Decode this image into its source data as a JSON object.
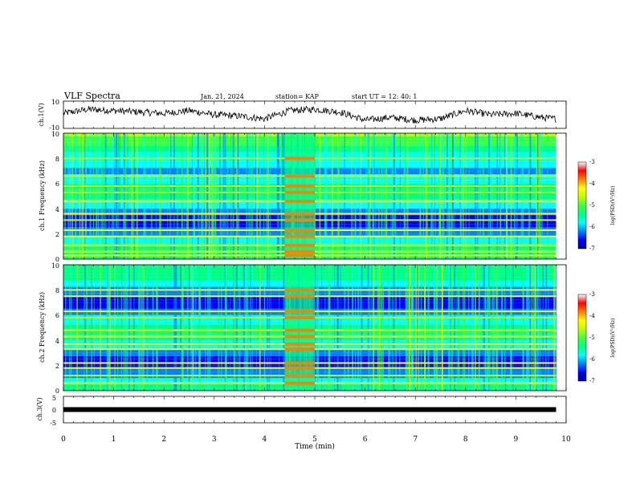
{
  "header": {
    "title": "VLF Spectra",
    "date": "Jan. 21, 2024",
    "station": "station= KAP",
    "start_time": "start UT =  12: 40: 1"
  },
  "colorbar": {
    "colors": [
      "#000080",
      "#0000ff",
      "#0080ff",
      "#00ffff",
      "#00ff80",
      "#40ff40",
      "#c0ff00",
      "#ffff00",
      "#ff8000",
      "#ff0000",
      "#ffffff"
    ],
    "ticks": [
      "-3",
      "-4",
      "-5",
      "-6",
      "-7"
    ],
    "label": "log(PSD)(V²/Hz)"
  },
  "chart_data": [
    {
      "type": "line",
      "title": "",
      "ylabel": "ch.1(V)",
      "ylim": [
        -10,
        10
      ],
      "y_ticks": [
        "10",
        "-10"
      ],
      "x": [
        0,
        0.5,
        1,
        1.5,
        2,
        2.5,
        3,
        3.5,
        4,
        4.5,
        5,
        5.5,
        6,
        6.5,
        7,
        7.5,
        8,
        8.5,
        9,
        9.5,
        9.8
      ],
      "y": [
        1,
        4,
        3,
        2,
        1,
        3,
        0,
        -1,
        -3,
        3,
        4,
        2,
        -4,
        -2,
        -4,
        -3,
        3,
        0,
        1,
        -2,
        -3
      ],
      "grid": false
    },
    {
      "type": "heatmap",
      "title": "",
      "channel": "ch.1",
      "ylabel": "ch.1 Frequency (kHz)",
      "ylim": [
        0,
        10
      ],
      "y_ticks": [
        "10",
        "8",
        "6",
        "4",
        "2",
        "0"
      ],
      "xlim": [
        0,
        10
      ],
      "data_end_min": 9.8,
      "log_psd_range": [
        -7,
        -3
      ],
      "bands_khz": [
        0.3,
        0.6,
        1.1,
        1.8,
        2.3,
        3.1,
        3.6,
        4.6,
        5.3,
        5.8,
        6.6,
        8.0
      ],
      "burst_min": [
        4.4,
        5.0
      ]
    },
    {
      "type": "heatmap",
      "title": "",
      "channel": "ch.2",
      "ylabel": "ch.2 Frequency (kHz)",
      "ylim": [
        0,
        10
      ],
      "y_ticks": [
        "10",
        "8",
        "6",
        "4",
        "2",
        "0"
      ],
      "xlim": [
        0,
        10
      ],
      "data_end_min": 9.8,
      "log_psd_range": [
        -7,
        -3
      ],
      "bands_khz": [
        0.6,
        1.2,
        1.8,
        2.2,
        3.3,
        3.7,
        4.3,
        4.8,
        5.8,
        6.3,
        7.5,
        8.0
      ],
      "burst_min": [
        4.4,
        5.0
      ]
    },
    {
      "type": "line",
      "title": "",
      "ylabel": "ch.3(V)",
      "ylim": [
        -5,
        5
      ],
      "y_ticks": [
        "5",
        "0",
        "-5"
      ],
      "x": [
        0,
        9.8
      ],
      "y": [
        0,
        0
      ],
      "xlabel": "Time (min)",
      "x_ticks": [
        "0",
        "1",
        "2",
        "3",
        "4",
        "5",
        "6",
        "7",
        "8",
        "9",
        "10"
      ],
      "grid": false
    }
  ]
}
